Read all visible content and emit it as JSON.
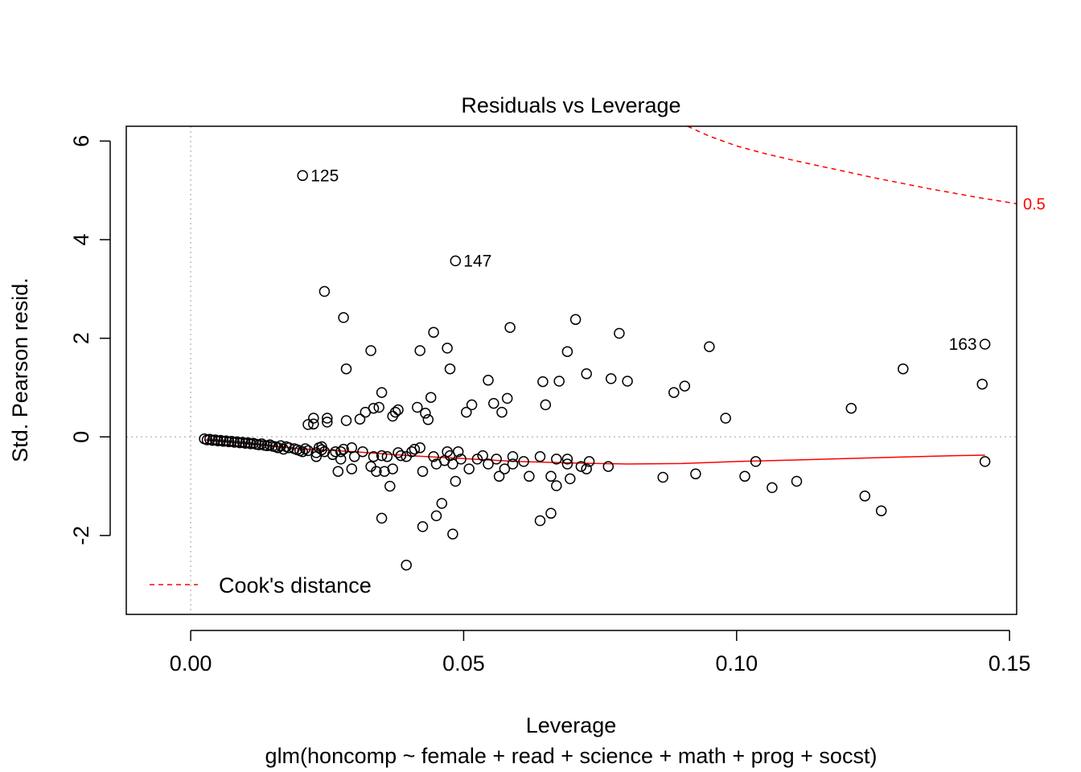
{
  "chart_data": {
    "type": "scatter",
    "title": "Residuals vs Leverage",
    "xlabel": "Leverage",
    "subtitle": "glm(honcomp ~ female + read + science + math + prog + socst)",
    "ylabel": "Std. Pearson resid.",
    "xlim": [
      -0.0118,
      0.1513
    ],
    "ylim": [
      -3.6,
      6.3
    ],
    "xticks": [
      0.0,
      0.05,
      0.1,
      0.15
    ],
    "xtick_labels": [
      "0.00",
      "0.05",
      "0.10",
      "0.15"
    ],
    "yticks": [
      -2,
      0,
      2,
      4,
      6
    ],
    "ytick_labels": [
      "-2",
      "0",
      "2",
      "4",
      "6"
    ],
    "colors": {
      "points": "#000000",
      "smoother": "#ff0000",
      "cooks": "#ff0000",
      "reference": "#bebebe"
    },
    "points": [
      [
        0.0025,
        -0.04
      ],
      [
        0.003,
        -0.06
      ],
      [
        0.0035,
        -0.05
      ],
      [
        0.004,
        -0.07
      ],
      [
        0.0045,
        -0.06
      ],
      [
        0.005,
        -0.08
      ],
      [
        0.0055,
        -0.07
      ],
      [
        0.006,
        -0.09
      ],
      [
        0.0065,
        -0.08
      ],
      [
        0.007,
        -0.1
      ],
      [
        0.0075,
        -0.09
      ],
      [
        0.008,
        -0.11
      ],
      [
        0.0085,
        -0.1
      ],
      [
        0.009,
        -0.12
      ],
      [
        0.0095,
        -0.11
      ],
      [
        0.01,
        -0.13
      ],
      [
        0.0105,
        -0.12
      ],
      [
        0.011,
        -0.14
      ],
      [
        0.0115,
        -0.13
      ],
      [
        0.012,
        -0.15
      ],
      [
        0.0125,
        -0.16
      ],
      [
        0.013,
        -0.14
      ],
      [
        0.0135,
        -0.17
      ],
      [
        0.014,
        -0.18
      ],
      [
        0.0145,
        -0.16
      ],
      [
        0.015,
        -0.19
      ],
      [
        0.0155,
        -0.2
      ],
      [
        0.016,
        -0.22
      ],
      [
        0.0165,
        -0.18
      ],
      [
        0.017,
        -0.25
      ],
      [
        0.0175,
        -0.2
      ],
      [
        0.018,
        -0.22
      ],
      [
        0.019,
        -0.24
      ],
      [
        0.0195,
        -0.26
      ],
      [
        0.02,
        -0.28
      ],
      [
        0.0205,
        -0.3
      ],
      [
        0.021,
        -0.24
      ],
      [
        0.0215,
        -0.28
      ],
      [
        0.0215,
        0.25
      ],
      [
        0.0225,
        0.38
      ],
      [
        0.0225,
        0.26
      ],
      [
        0.023,
        -0.32
      ],
      [
        0.023,
        -0.4
      ],
      [
        0.0235,
        -0.22
      ],
      [
        0.024,
        -0.26
      ],
      [
        0.024,
        -0.2
      ],
      [
        0.0245,
        -0.3
      ],
      [
        0.025,
        0.38
      ],
      [
        0.025,
        0.3
      ],
      [
        0.026,
        -0.36
      ],
      [
        0.0265,
        -0.3
      ],
      [
        0.027,
        -0.7
      ],
      [
        0.0275,
        -0.45
      ],
      [
        0.0275,
        -0.3
      ],
      [
        0.028,
        -0.25
      ],
      [
        0.0285,
        0.33
      ],
      [
        0.0295,
        -0.65
      ],
      [
        0.0295,
        -0.22
      ],
      [
        0.03,
        -0.4
      ],
      [
        0.031,
        0.36
      ],
      [
        0.0315,
        -0.3
      ],
      [
        0.032,
        0.5
      ],
      [
        0.033,
        -0.6
      ],
      [
        0.0335,
        0.58
      ],
      [
        0.0335,
        -0.4
      ],
      [
        0.034,
        -0.7
      ],
      [
        0.0345,
        0.6
      ],
      [
        0.035,
        0.9
      ],
      [
        0.035,
        -0.38
      ],
      [
        0.0355,
        -0.7
      ],
      [
        0.036,
        -0.4
      ],
      [
        0.0365,
        -1.0
      ],
      [
        0.037,
        0.42
      ],
      [
        0.037,
        -0.65
      ],
      [
        0.0375,
        0.5
      ],
      [
        0.038,
        0.55
      ],
      [
        0.038,
        -0.32
      ],
      [
        0.0385,
        -0.38
      ],
      [
        0.0395,
        -0.4
      ],
      [
        0.0405,
        -0.3
      ],
      [
        0.041,
        -0.25
      ],
      [
        0.0415,
        0.6
      ],
      [
        0.042,
        -0.22
      ],
      [
        0.0425,
        -0.7
      ],
      [
        0.043,
        0.48
      ],
      [
        0.0435,
        0.35
      ],
      [
        0.044,
        0.8
      ],
      [
        0.0445,
        -0.4
      ],
      [
        0.045,
        -0.55
      ],
      [
        0.046,
        -1.35
      ],
      [
        0.0465,
        -0.48
      ],
      [
        0.047,
        -0.3
      ],
      [
        0.0475,
        -0.38
      ],
      [
        0.048,
        -0.55
      ],
      [
        0.0485,
        -0.9
      ],
      [
        0.049,
        -0.3
      ],
      [
        0.0495,
        -0.45
      ],
      [
        0.0505,
        0.5
      ],
      [
        0.051,
        -0.65
      ],
      [
        0.0515,
        0.65
      ],
      [
        0.0525,
        -0.45
      ],
      [
        0.0535,
        -0.38
      ],
      [
        0.0545,
        -0.55
      ],
      [
        0.0555,
        0.68
      ],
      [
        0.056,
        -0.45
      ],
      [
        0.0565,
        -0.8
      ],
      [
        0.057,
        0.5
      ],
      [
        0.0575,
        -0.65
      ],
      [
        0.058,
        0.78
      ],
      [
        0.059,
        -0.55
      ],
      [
        0.059,
        -0.4
      ],
      [
        0.061,
        -0.5
      ],
      [
        0.062,
        -0.8
      ],
      [
        0.064,
        -0.4
      ],
      [
        0.065,
        0.65
      ],
      [
        0.066,
        -0.8
      ],
      [
        0.067,
        -0.45
      ],
      [
        0.067,
        -0.99
      ],
      [
        0.069,
        -0.45
      ],
      [
        0.069,
        -0.55
      ],
      [
        0.0695,
        -0.85
      ],
      [
        0.0715,
        -0.6
      ],
      [
        0.0725,
        -0.65
      ],
      [
        0.073,
        -0.5
      ],
      [
        0.0765,
        -0.6
      ],
      [
        0.0865,
        -0.82
      ],
      [
        0.0925,
        -0.75
      ],
      [
        0.1015,
        -0.8
      ],
      [
        0.1035,
        -0.5
      ],
      [
        0.1065,
        -1.03
      ],
      [
        0.111,
        -0.9
      ],
      [
        0.1235,
        -1.2
      ],
      [
        0.1265,
        -1.5
      ],
      [
        0.1455,
        -0.5
      ],
      [
        0.028,
        2.42
      ],
      [
        0.0285,
        1.38
      ],
      [
        0.033,
        1.75
      ],
      [
        0.035,
        -1.65
      ],
      [
        0.0395,
        -2.6
      ],
      [
        0.042,
        1.75
      ],
      [
        0.0425,
        -1.82
      ],
      [
        0.045,
        -1.6
      ],
      [
        0.0445,
        2.12
      ],
      [
        0.047,
        1.8
      ],
      [
        0.0475,
        1.38
      ],
      [
        0.048,
        -1.97
      ],
      [
        0.0545,
        1.15
      ],
      [
        0.0585,
        2.22
      ],
      [
        0.064,
        -1.7
      ],
      [
        0.0645,
        1.12
      ],
      [
        0.066,
        -1.55
      ],
      [
        0.0675,
        1.13
      ],
      [
        0.069,
        1.73
      ],
      [
        0.0705,
        2.38
      ],
      [
        0.0725,
        1.28
      ],
      [
        0.077,
        1.18
      ],
      [
        0.0785,
        2.1
      ],
      [
        0.08,
        1.13
      ],
      [
        0.0885,
        0.9
      ],
      [
        0.0905,
        1.03
      ],
      [
        0.095,
        1.83
      ],
      [
        0.098,
        0.38
      ],
      [
        0.121,
        0.58
      ],
      [
        0.1305,
        1.38
      ],
      [
        0.145,
        1.07
      ],
      [
        0.0245,
        2.95
      ]
    ],
    "labeled_points": [
      {
        "x": 0.0205,
        "y": 5.3,
        "label": "125",
        "side": "right"
      },
      {
        "x": 0.0485,
        "y": 3.57,
        "label": "147",
        "side": "right"
      },
      {
        "x": 0.1455,
        "y": 1.88,
        "label": "163",
        "side": "left"
      }
    ],
    "smoother": [
      [
        0.0025,
        -0.06
      ],
      [
        0.01,
        -0.13
      ],
      [
        0.02,
        -0.24
      ],
      [
        0.03,
        -0.3
      ],
      [
        0.04,
        -0.38
      ],
      [
        0.05,
        -0.44
      ],
      [
        0.06,
        -0.5
      ],
      [
        0.07,
        -0.53
      ],
      [
        0.08,
        -0.55
      ],
      [
        0.09,
        -0.54
      ],
      [
        0.1,
        -0.5
      ],
      [
        0.11,
        -0.47
      ],
      [
        0.12,
        -0.44
      ],
      [
        0.13,
        -0.41
      ],
      [
        0.14,
        -0.38
      ],
      [
        0.1455,
        -0.37
      ]
    ],
    "cooks_contour": {
      "level": "0.5",
      "points": [
        [
          0.091,
          6.3
        ],
        [
          0.095,
          6.1
        ],
        [
          0.1,
          5.9
        ],
        [
          0.105,
          5.75
        ],
        [
          0.11,
          5.62
        ],
        [
          0.115,
          5.5
        ],
        [
          0.12,
          5.38
        ],
        [
          0.125,
          5.26
        ],
        [
          0.13,
          5.15
        ],
        [
          0.135,
          5.04
        ],
        [
          0.14,
          4.94
        ],
        [
          0.145,
          4.84
        ],
        [
          0.1513,
          4.73
        ]
      ]
    },
    "legend": {
      "label": "Cook's distance",
      "position": "bottom-left"
    },
    "reference_lines": {
      "h": 0,
      "v": 0
    }
  }
}
